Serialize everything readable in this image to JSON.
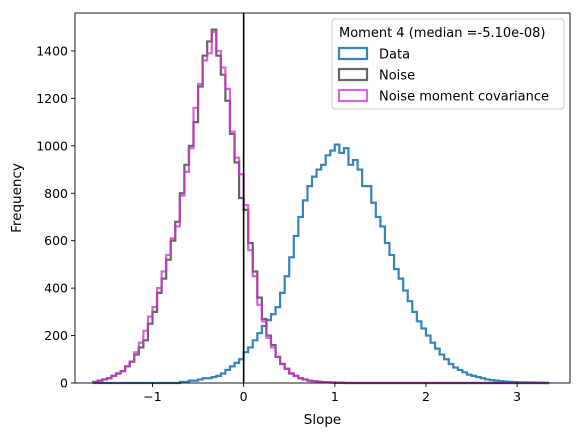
{
  "chart_data": {
    "type": "histogram",
    "xlabel": "Slope",
    "ylabel": "Frequency",
    "xlim": [
      -1.85,
      3.58
    ],
    "ylim": [
      0,
      1560
    ],
    "xticks": [
      -1,
      0,
      1,
      2,
      3
    ],
    "xtick_labels": [
      "−1",
      "0",
      "1",
      "2",
      "3"
    ],
    "yticks": [
      0,
      200,
      400,
      600,
      800,
      1000,
      1200,
      1400
    ],
    "ytick_labels": [
      "0",
      "200",
      "400",
      "600",
      "800",
      "1000",
      "1200",
      "1400"
    ],
    "legend": {
      "title": "Moment 4 (median =-5.10e-08)",
      "placement": "top-right"
    },
    "vertical_line": {
      "x": 0,
      "color": "#000000"
    },
    "bin_start": -1.65,
    "bin_width": 0.05,
    "series": [
      {
        "name": "Data",
        "color": "#1f77b4",
        "values": [
          0,
          0,
          0,
          0,
          0,
          0,
          0,
          0,
          0,
          0,
          0,
          0,
          0,
          0,
          0,
          0,
          0,
          0,
          0,
          5,
          5,
          10,
          10,
          15,
          20,
          20,
          25,
          30,
          40,
          55,
          70,
          85,
          100,
          130,
          150,
          180,
          210,
          240,
          265,
          290,
          320,
          380,
          450,
          530,
          620,
          700,
          770,
          830,
          870,
          900,
          920,
          960,
          980,
          1005,
          970,
          990,
          920,
          940,
          900,
          830,
          830,
          760,
          700,
          660,
          590,
          540,
          480,
          440,
          390,
          345,
          300,
          260,
          230,
          200,
          170,
          145,
          120,
          100,
          80,
          65,
          55,
          45,
          35,
          30,
          25,
          20,
          15,
          12,
          10,
          8,
          6,
          5,
          4,
          3,
          3,
          2,
          2,
          1,
          1,
          0
        ]
      },
      {
        "name": "Noise",
        "color": "#555555",
        "values": [
          5,
          10,
          15,
          20,
          30,
          40,
          50,
          70,
          90,
          120,
          150,
          180,
          250,
          300,
          380,
          440,
          520,
          600,
          680,
          800,
          920,
          1000,
          1100,
          1250,
          1380,
          1440,
          1490,
          1380,
          1300,
          1190,
          1050,
          930,
          780,
          730,
          590,
          470,
          360,
          270,
          200,
          160,
          110,
          80,
          60,
          40,
          30,
          20,
          15,
          10,
          8,
          6,
          4,
          3,
          2,
          1,
          1,
          0,
          0,
          0,
          0,
          0,
          0,
          0,
          0,
          0,
          0,
          0,
          0,
          0,
          0,
          0,
          0,
          0,
          0,
          0,
          0,
          0,
          0,
          0,
          0,
          0,
          0,
          0,
          0,
          0,
          0,
          0,
          0,
          0,
          0,
          0,
          0,
          0,
          0,
          0,
          0,
          0,
          0,
          0,
          0,
          0
        ]
      },
      {
        "name": "Noise moment covariance",
        "color": "#cc33cc",
        "values": [
          5,
          10,
          15,
          20,
          30,
          40,
          50,
          70,
          90,
          130,
          170,
          220,
          280,
          320,
          400,
          470,
          540,
          610,
          660,
          790,
          890,
          990,
          1160,
          1260,
          1360,
          1390,
          1480,
          1400,
          1330,
          1240,
          1060,
          950,
          880,
          750,
          560,
          450,
          330,
          260,
          190,
          150,
          110,
          80,
          60,
          40,
          30,
          20,
          15,
          10,
          8,
          6,
          4,
          3,
          2,
          1,
          1,
          0,
          0,
          0,
          0,
          0,
          0,
          0,
          0,
          0,
          0,
          0,
          0,
          0,
          0,
          0,
          0,
          0,
          0,
          0,
          0,
          0,
          0,
          0,
          0,
          0,
          0,
          0,
          0,
          0,
          0,
          0,
          0,
          0,
          0,
          0,
          0,
          0,
          0,
          0,
          0,
          0,
          0,
          0,
          0,
          0
        ]
      }
    ]
  }
}
